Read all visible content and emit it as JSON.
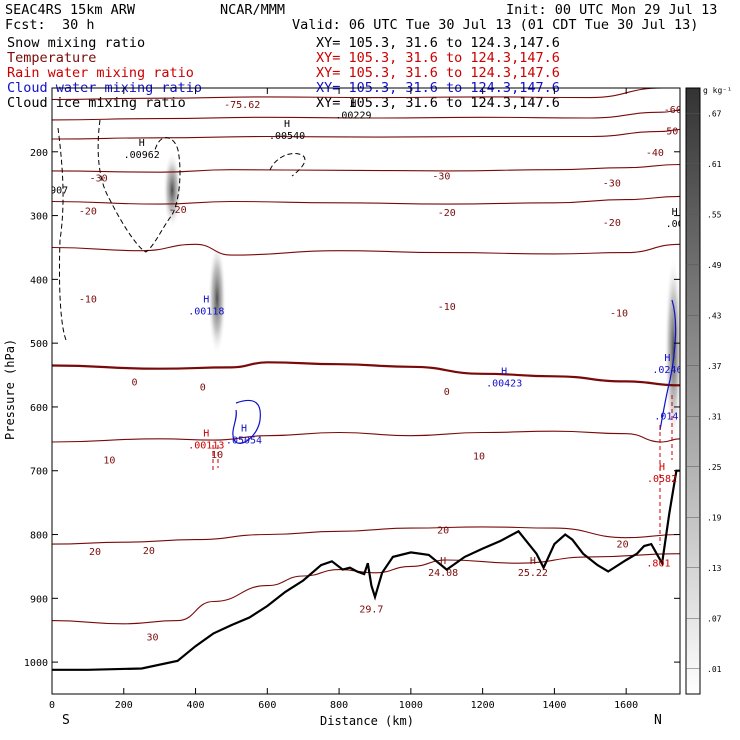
{
  "header": {
    "model": "SEAC4RS 15km ARW",
    "org": "NCAR/MMM",
    "init": "Init: 00 UTC Mon 29 Jul 13",
    "fcst_label": "Fcst:",
    "fcst_value": "30 h",
    "valid": "Valid: 06 UTC Tue 30 Jul 13 (01 CDT Tue 30 Jul 13)"
  },
  "fields": [
    {
      "name": "Snow mixing ratio",
      "xy": "XY= 105.3, 31.6 to 124.3,147.6",
      "color": "#000000"
    },
    {
      "name": "Temperature",
      "xy": "XY= 105.3, 31.6 to 124.3,147.6",
      "color": "#7a0a0a"
    },
    {
      "name": "Rain water mixing ratio",
      "xy": "XY= 105.3, 31.6 to 124.3,147.6",
      "color": "#cc0000"
    },
    {
      "name": "Cloud water mixing ratio",
      "xy": "XY= 105.3, 31.6 to 124.3,147.6",
      "color": "#1010cc"
    },
    {
      "name": "Cloud ice mixing ratio",
      "xy": "XY= 105.3, 31.6 to 124.3,147.6",
      "color": "#000000"
    }
  ],
  "chart_data": {
    "type": "cross-section",
    "xlabel": "Distance (km)",
    "ylabel": "Pressure (hPa)",
    "xlim": [
      0,
      1750
    ],
    "ylim": [
      1050,
      100
    ],
    "x_ticks": [
      0,
      200,
      400,
      600,
      800,
      1000,
      1200,
      1400,
      1600
    ],
    "y_ticks": [
      200,
      300,
      400,
      500,
      600,
      700,
      800,
      900,
      1000
    ],
    "endpoints": {
      "left": "S",
      "right": "N"
    },
    "colorbar": {
      "unit": "g kg⁻¹",
      "levels": [
        0.01,
        0.07,
        0.13,
        0.19,
        0.25,
        0.31,
        0.37,
        0.43,
        0.49,
        0.55,
        0.61,
        0.67
      ]
    },
    "temperature_contours": [
      {
        "level": -60,
        "color": "#7a0a0a",
        "points": [
          [
            0,
            118
          ],
          [
            300,
            116
          ],
          [
            600,
            114
          ],
          [
            900,
            115
          ],
          [
            1200,
            114
          ],
          [
            1500,
            115
          ],
          [
            1700,
            100
          ],
          [
            1750,
            100
          ]
        ]
      },
      {
        "level": -50,
        "color": "#7a0a0a",
        "points": [
          [
            0,
            150
          ],
          [
            300,
            148
          ],
          [
            600,
            146
          ],
          [
            900,
            147
          ],
          [
            1200,
            146
          ],
          [
            1500,
            147
          ],
          [
            1700,
            138
          ],
          [
            1750,
            135
          ]
        ]
      },
      {
        "level": -40,
        "color": "#7a0a0a",
        "points": [
          [
            0,
            180
          ],
          [
            300,
            178
          ],
          [
            600,
            176
          ],
          [
            900,
            177
          ],
          [
            1200,
            176
          ],
          [
            1500,
            176
          ],
          [
            1700,
            168
          ],
          [
            1750,
            165
          ]
        ]
      },
      {
        "level": -30,
        "color": "#7a0a0a",
        "points": [
          [
            0,
            230
          ],
          [
            300,
            232
          ],
          [
            500,
            228
          ],
          [
            800,
            229
          ],
          [
            1100,
            230
          ],
          [
            1400,
            228
          ],
          [
            1600,
            225
          ],
          [
            1750,
            220
          ]
        ]
      },
      {
        "level": -20,
        "color": "#7a0a0a",
        "points": [
          [
            0,
            278
          ],
          [
            300,
            282
          ],
          [
            500,
            278
          ],
          [
            800,
            280
          ],
          [
            1100,
            282
          ],
          [
            1400,
            280
          ],
          [
            1600,
            275
          ],
          [
            1750,
            270
          ]
        ]
      },
      {
        "level": -10,
        "color": "#7a0a0a",
        "points": [
          [
            0,
            350
          ],
          [
            250,
            355
          ],
          [
            400,
            345
          ],
          [
            500,
            362
          ],
          [
            800,
            355
          ],
          [
            1100,
            358
          ],
          [
            1400,
            360
          ],
          [
            1600,
            358
          ],
          [
            1750,
            345
          ]
        ]
      },
      {
        "level": 0,
        "color": "#7a0a0a",
        "bold": true,
        "points": [
          [
            0,
            535
          ],
          [
            300,
            540
          ],
          [
            500,
            538
          ],
          [
            600,
            530
          ],
          [
            800,
            533
          ],
          [
            1000,
            537
          ],
          [
            1200,
            548
          ],
          [
            1400,
            552
          ],
          [
            1600,
            560
          ],
          [
            1750,
            566
          ]
        ]
      },
      {
        "level": 10,
        "color": "#7a0a0a",
        "points": [
          [
            0,
            655
          ],
          [
            300,
            650
          ],
          [
            450,
            652
          ],
          [
            600,
            645
          ],
          [
            800,
            640
          ],
          [
            1000,
            645
          ],
          [
            1200,
            640
          ],
          [
            1400,
            638
          ],
          [
            1600,
            642
          ],
          [
            1700,
            655
          ],
          [
            1750,
            650
          ]
        ]
      },
      {
        "level": 20,
        "color": "#7a0a0a",
        "points": [
          [
            0,
            815
          ],
          [
            200,
            812
          ],
          [
            400,
            808
          ],
          [
            600,
            800
          ],
          [
            800,
            795
          ],
          [
            1000,
            790
          ],
          [
            1200,
            788
          ],
          [
            1400,
            790
          ],
          [
            1600,
            805
          ],
          [
            1750,
            800
          ]
        ]
      },
      {
        "level": 30,
        "color": "#7a0a0a",
        "points": [
          [
            0,
            935
          ],
          [
            200,
            940
          ],
          [
            350,
            935
          ],
          [
            450,
            905
          ],
          [
            600,
            880
          ],
          [
            700,
            865
          ],
          [
            800,
            855
          ],
          [
            900,
            860
          ],
          [
            1000,
            850
          ],
          [
            1100,
            840
          ],
          [
            1300,
            845
          ],
          [
            1500,
            835
          ],
          [
            1750,
            830
          ]
        ]
      }
    ],
    "temperature_labels": [
      {
        "text": "-75.62",
        "x": 530,
        "p": 125
      },
      {
        "text": "-60",
        "x": 1730,
        "p": 133
      },
      {
        "text": "-50",
        "x": 1720,
        "p": 167
      },
      {
        "text": "-40",
        "x": 1680,
        "p": 200
      },
      {
        "text": "-30",
        "x": 130,
        "p": 240
      },
      {
        "text": "-30",
        "x": 1085,
        "p": 237
      },
      {
        "text": "-30",
        "x": 1560,
        "p": 248
      },
      {
        "text": "-20",
        "x": 100,
        "p": 292
      },
      {
        "text": "-20",
        "x": 350,
        "p": 290
      },
      {
        "text": "-20",
        "x": 1100,
        "p": 294
      },
      {
        "text": "-20",
        "x": 1560,
        "p": 310
      },
      {
        "text": "-10",
        "x": 100,
        "p": 430
      },
      {
        "text": "-10",
        "x": 1100,
        "p": 442
      },
      {
        "text": "-10",
        "x": 1580,
        "p": 452
      },
      {
        "text": "0",
        "x": 230,
        "p": 560
      },
      {
        "text": "0",
        "x": 420,
        "p": 568
      },
      {
        "text": "0",
        "x": 1100,
        "p": 575
      },
      {
        "text": "10",
        "x": 160,
        "p": 682
      },
      {
        "text": "10",
        "x": 460,
        "p": 674
      },
      {
        "text": "10",
        "x": 1190,
        "p": 676
      },
      {
        "text": "20",
        "x": 120,
        "p": 826
      },
      {
        "text": "20",
        "x": 270,
        "p": 824
      },
      {
        "text": "20",
        "x": 1090,
        "p": 792
      },
      {
        "text": "20",
        "x": 1590,
        "p": 814
      },
      {
        "text": "30",
        "x": 280,
        "p": 960
      }
    ],
    "terrain": [
      [
        0,
        1012
      ],
      [
        100,
        1012
      ],
      [
        250,
        1010
      ],
      [
        350,
        998
      ],
      [
        400,
        975
      ],
      [
        450,
        955
      ],
      [
        500,
        942
      ],
      [
        550,
        930
      ],
      [
        600,
        912
      ],
      [
        650,
        890
      ],
      [
        700,
        872
      ],
      [
        750,
        848
      ],
      [
        780,
        842
      ],
      [
        810,
        855
      ],
      [
        830,
        852
      ],
      [
        850,
        858
      ],
      [
        870,
        862
      ],
      [
        880,
        845
      ],
      [
        890,
        880
      ],
      [
        900,
        898
      ],
      [
        920,
        860
      ],
      [
        950,
        835
      ],
      [
        1000,
        828
      ],
      [
        1050,
        832
      ],
      [
        1100,
        855
      ],
      [
        1150,
        835
      ],
      [
        1200,
        822
      ],
      [
        1250,
        810
      ],
      [
        1300,
        795
      ],
      [
        1350,
        830
      ],
      [
        1370,
        852
      ],
      [
        1400,
        815
      ],
      [
        1430,
        800
      ],
      [
        1450,
        808
      ],
      [
        1480,
        830
      ],
      [
        1520,
        848
      ],
      [
        1550,
        858
      ],
      [
        1600,
        840
      ],
      [
        1630,
        830
      ],
      [
        1650,
        818
      ],
      [
        1670,
        815
      ],
      [
        1690,
        835
      ],
      [
        1700,
        845
      ],
      [
        1720,
        768
      ],
      [
        1740,
        700
      ],
      [
        1750,
        700
      ]
    ],
    "extrema": [
      {
        "type": "H",
        "value": ".00962",
        "x": 250,
        "p": 210,
        "color": "#000000"
      },
      {
        "type": "H",
        "value": ".00540",
        "x": 655,
        "p": 180,
        "color": "#000000"
      },
      {
        "type": "H",
        "value": ".00229",
        "x": 840,
        "p": 148,
        "color": "#000000"
      },
      {
        "type": "",
        "value": "907",
        "x": 20,
        "p": 265,
        "color": "#000000"
      },
      {
        "type": "H",
        "value": ".00118",
        "x": 430,
        "p": 455,
        "color": "#1010cc"
      },
      {
        "type": "H",
        "value": ".05054",
        "x": 535,
        "p": 657,
        "color": "#1010cc"
      },
      {
        "type": "H",
        "value": ".00423",
        "x": 1260,
        "p": 568,
        "color": "#1010cc"
      },
      {
        "type": "H",
        "value": ".0246",
        "x": 1715,
        "p": 547,
        "color": "#1010cc"
      },
      {
        "type": "",
        "value": ".014",
        "x": 1712,
        "p": 620,
        "color": "#1010cc"
      },
      {
        "type": "H",
        "value": ".00113",
        "x": 430,
        "p": 665,
        "color": "#cc0000"
      },
      {
        "type": "H",
        "value": ".0582",
        "x": 1700,
        "p": 718,
        "color": "#cc0000"
      },
      {
        "type": "",
        "value": ".801",
        "x": 1690,
        "p": 850,
        "color": "#cc0000"
      },
      {
        "type": "H",
        "value": "24.08",
        "x": 1090,
        "p": 865,
        "color": "#7a0a0a"
      },
      {
        "type": "H",
        "value": "25.22",
        "x": 1340,
        "p": 865,
        "color": "#7a0a0a"
      },
      {
        "type": "",
        "value": "29.7",
        "x": 890,
        "p": 922,
        "color": "#7a0a0a"
      },
      {
        "type": "H",
        "value": ".00",
        "x": 1735,
        "p": 318,
        "color": "#000000"
      }
    ],
    "shaded_ice": [
      {
        "x": 335,
        "p_top": 200,
        "p_bot": 320
      },
      {
        "x": 460,
        "p_top": 340,
        "p_bot": 520
      },
      {
        "x": 1732,
        "p_top": 360,
        "p_bot": 660
      }
    ]
  }
}
